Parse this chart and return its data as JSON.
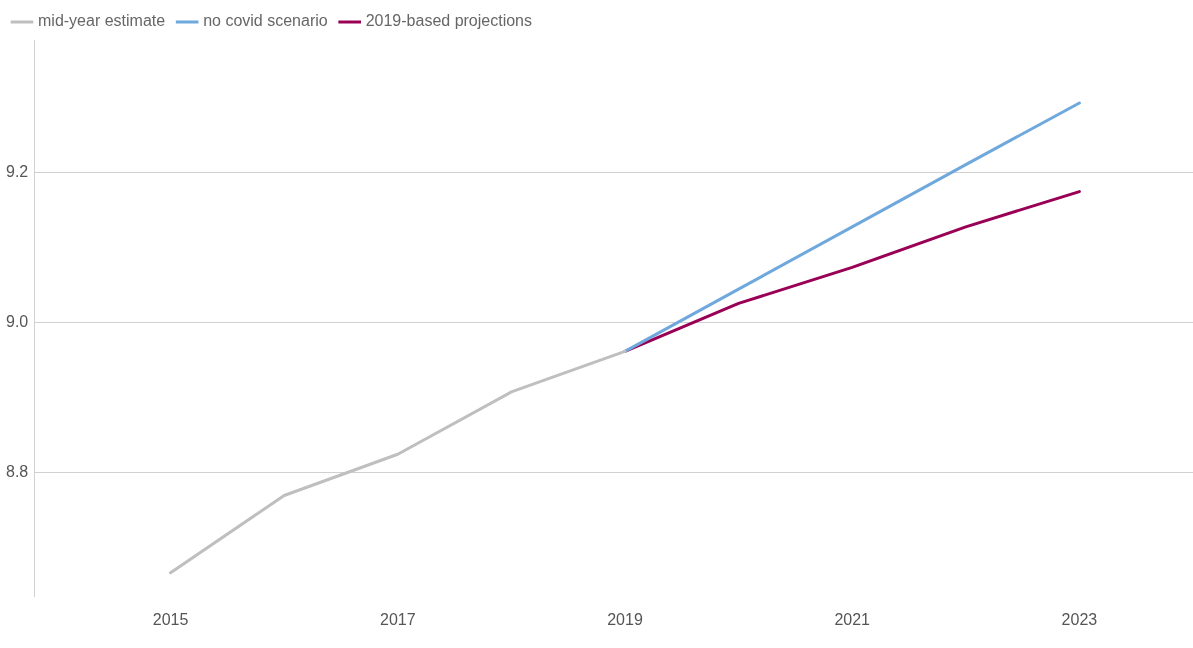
{
  "chart_data": {
    "type": "line",
    "x": [
      2015,
      2016,
      2017,
      2018,
      2019,
      2020,
      2021,
      2022,
      2023
    ],
    "series": [
      {
        "name": "mid-year estimate",
        "color": "#bfbfbf",
        "values": [
          8.667,
          8.77,
          8.825,
          8.908,
          8.962,
          null,
          null,
          null,
          null
        ]
      },
      {
        "name": "no covid scenario",
        "color": "#6fa8dc",
        "values": [
          null,
          null,
          null,
          null,
          8.962,
          9.045,
          9.128,
          9.211,
          9.293
        ]
      },
      {
        "name": "2019-based projections",
        "color": "#990055",
        "values": [
          null,
          null,
          null,
          null,
          8.962,
          9.026,
          9.074,
          9.128,
          9.175
        ]
      }
    ],
    "xlim": [
      2013.8,
      2024
    ],
    "xticks": [
      2015,
      2017,
      2019,
      2021,
      2023
    ],
    "ylim": [
      8.635,
      9.377
    ],
    "yticks": [
      {
        "value": 8.8,
        "label": "8.8"
      },
      {
        "value": 9.0,
        "label": "9.0"
      },
      {
        "value": 9.2,
        "label": "9.2"
      }
    ],
    "grid": "y",
    "legend": "top left",
    "marker": "none",
    "line_style": "solid"
  }
}
